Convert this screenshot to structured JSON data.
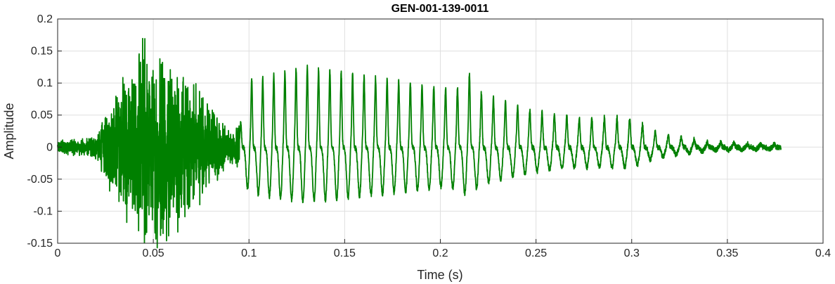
{
  "chart_data": {
    "type": "line",
    "title": "GEN-001-139-0011",
    "xlabel": "Time (s)",
    "ylabel": "Amplitude",
    "xlim": [
      0,
      0.4
    ],
    "ylim": [
      -0.15,
      0.2
    ],
    "x_ticks": [
      "0",
      "0.05",
      "0.1",
      "0.15",
      "0.2",
      "0.25",
      "0.3",
      "0.35",
      "0.4"
    ],
    "y_ticks": [
      "0.2",
      "0.15",
      "0.1",
      "0.05",
      "0",
      "-0.05",
      "-0.1",
      "-0.15"
    ],
    "grid": true,
    "line_color": "#008000",
    "series": [
      {
        "duration": 0.378,
        "envelope": [
          [
            0,
            0.008
          ],
          [
            0.01,
            0.012
          ],
          [
            0.02,
            0.015
          ],
          [
            0.025,
            0.05
          ],
          [
            0.03,
            0.08
          ],
          [
            0.035,
            0.095
          ],
          [
            0.04,
            0.11
          ],
          [
            0.045,
            0.15
          ],
          [
            0.05,
            0.13
          ],
          [
            0.055,
            0.14
          ],
          [
            0.06,
            0.12
          ],
          [
            0.065,
            0.11
          ],
          [
            0.07,
            0.09
          ],
          [
            0.075,
            0.08
          ],
          [
            0.08,
            0.06
          ],
          [
            0.085,
            0.04
          ],
          [
            0.09,
            0.02
          ],
          [
            0.095,
            0.03
          ],
          [
            0.1,
            0.115
          ],
          [
            0.11,
            0.12
          ],
          [
            0.12,
            0.13
          ],
          [
            0.13,
            0.135
          ],
          [
            0.14,
            0.13
          ],
          [
            0.15,
            0.125
          ],
          [
            0.16,
            0.12
          ],
          [
            0.17,
            0.115
          ],
          [
            0.18,
            0.11
          ],
          [
            0.19,
            0.105
          ],
          [
            0.2,
            0.1
          ],
          [
            0.21,
            0.1
          ],
          [
            0.215,
            0.125
          ],
          [
            0.22,
            0.095
          ],
          [
            0.23,
            0.08
          ],
          [
            0.24,
            0.07
          ],
          [
            0.25,
            0.06
          ],
          [
            0.26,
            0.055
          ],
          [
            0.27,
            0.05
          ],
          [
            0.28,
            0.05
          ],
          [
            0.29,
            0.05
          ],
          [
            0.3,
            0.05
          ],
          [
            0.31,
            0.03
          ],
          [
            0.32,
            0.02
          ],
          [
            0.33,
            0.015
          ],
          [
            0.34,
            0.008
          ],
          [
            0.36,
            0.006
          ],
          [
            0.37,
            0.005
          ],
          [
            0.378,
            0.004
          ]
        ]
      }
    ]
  }
}
